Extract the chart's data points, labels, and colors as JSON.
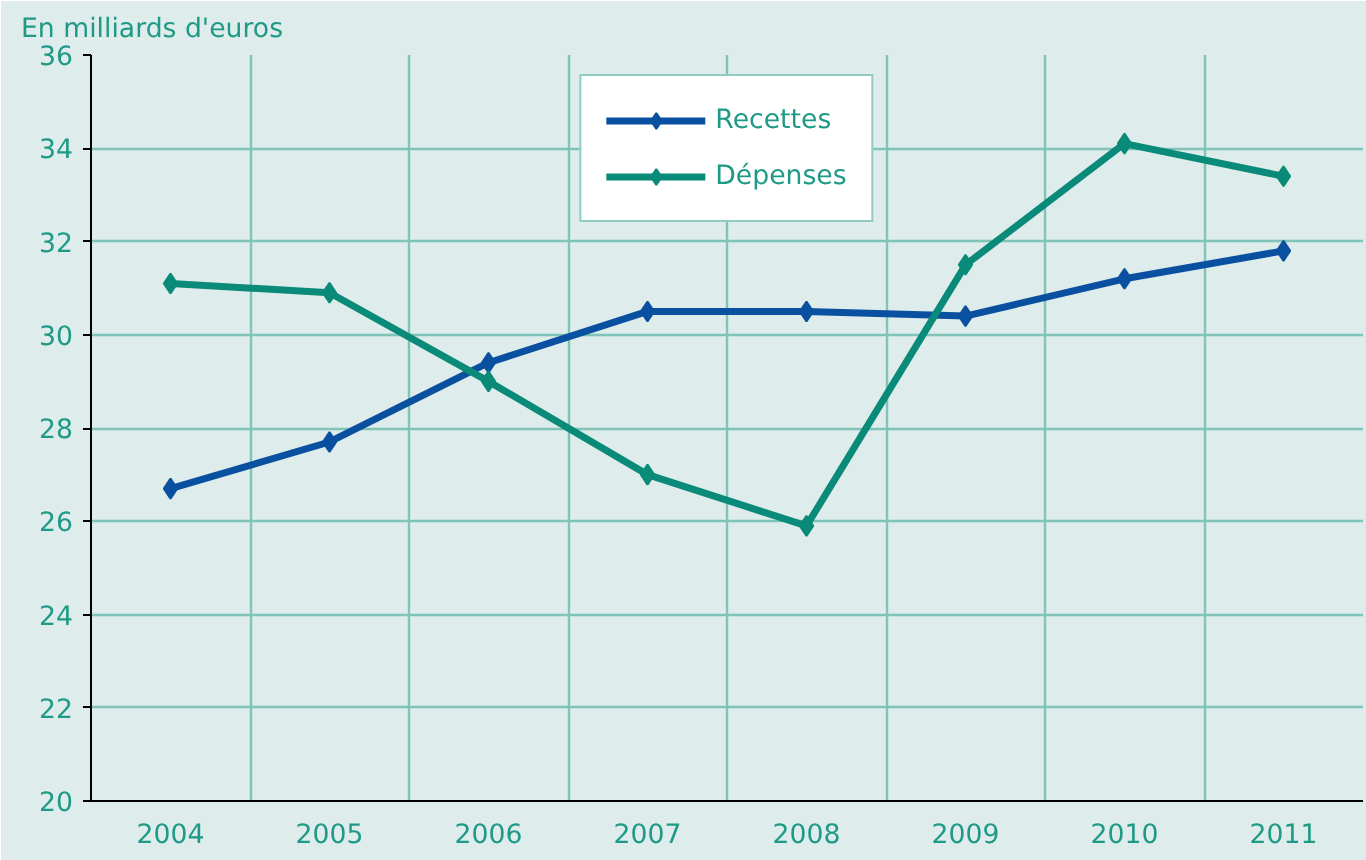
{
  "chart_data": {
    "type": "line",
    "ylabel": "En milliards d'euros",
    "categories": [
      "2004",
      "2005",
      "2006",
      "2007",
      "2008",
      "2009",
      "2010",
      "2011"
    ],
    "series": [
      {
        "name": "Recettes",
        "color": "#0a50a0",
        "values": [
          26.7,
          27.7,
          29.4,
          30.5,
          30.5,
          30.4,
          31.2,
          31.8
        ]
      },
      {
        "name": "Dépenses",
        "color": "#0a8a78",
        "values": [
          31.1,
          30.9,
          29.0,
          27.0,
          25.9,
          31.5,
          34.1,
          33.4
        ]
      }
    ],
    "ylim": [
      20,
      36
    ],
    "yticks": [
      20,
      22,
      24,
      26,
      28,
      30,
      32,
      34,
      36
    ],
    "grid": true,
    "legend": "top",
    "marker": "diamond",
    "line_style": "solid"
  }
}
